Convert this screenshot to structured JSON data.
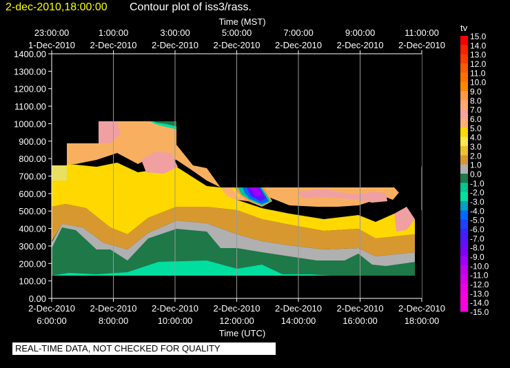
{
  "header": {
    "timestamp": "2-dec-2010,18:00:00",
    "title": "Contour plot of iss3/rass."
  },
  "banner": "REAL-TIME DATA, NOT CHECKED FOR QUALITY",
  "colors": {
    "background": "#000000",
    "grid": "#999999",
    "text": "#ffffff"
  },
  "chart_data": {
    "type": "heatmap",
    "ylim": [
      0,
      1400
    ],
    "yticks": [
      "1400.00",
      "1300.00",
      "1200.00",
      "1100.00",
      "1000.00",
      "900.00",
      "800.00",
      "700.00",
      "600.00",
      "500.00",
      "400.00",
      "300.00",
      "200.00",
      "100.00",
      "0.00"
    ],
    "top_axis": {
      "label": "Time (MST)",
      "ticks": [
        {
          "time": "23:00:00",
          "date": "1-Dec-2010"
        },
        {
          "time": "1:00:00",
          "date": "2-Dec-2010"
        },
        {
          "time": "3:00:00",
          "date": "2-Dec-2010"
        },
        {
          "time": "5:00:00",
          "date": "2-Dec-2010"
        },
        {
          "time": "7:00:00",
          "date": "2-Dec-2010"
        },
        {
          "time": "9:00:00",
          "date": "2-Dec-2010"
        },
        {
          "time": "11:00:00",
          "date": "2-Dec-2010"
        }
      ]
    },
    "bottom_axis": {
      "label": "Time (UTC)",
      "ticks": [
        {
          "date": "2-Dec-2010",
          "time": "6:00:00"
        },
        {
          "date": "2-Dec-2010",
          "time": "8:00:00"
        },
        {
          "date": "2-Dec-2010",
          "time": "10:00:00"
        },
        {
          "date": "2-Dec-2010",
          "time": "12:00:00"
        },
        {
          "date": "2-Dec-2010",
          "time": "14:00:00"
        },
        {
          "date": "2-Dec-2010",
          "time": "16:00:00"
        },
        {
          "date": "2-Dec-2010",
          "time": "18:00:00"
        }
      ]
    },
    "xlim_utc_hours": [
      6,
      18
    ],
    "colorbar": {
      "label": "tv",
      "levels": [
        "15.0",
        "14.0",
        "13.0",
        "12.0",
        "11.0",
        "10.0",
        "9.0",
        "8.0",
        "7.0",
        "6.0",
        "5.0",
        "4.0",
        "3.0",
        "2.0",
        "1.0",
        "0.0",
        "-1.0",
        "-2.0",
        "-3.0",
        "-4.0",
        "-5.0",
        "-6.0",
        "-7.0",
        "-8.0",
        "-9.0",
        "-10.0",
        "-11.0",
        "-12.0",
        "-13.0",
        "-14.0",
        "-15.0"
      ],
      "colors": [
        "#ff0000",
        "#ff2000",
        "#ff3c00",
        "#ff5a00",
        "#ff7000",
        "#ff8800",
        "#ff9a48",
        "#ffa870",
        "#ffa0a0",
        "#ffb070",
        "#ffd800",
        "#ffe84a",
        "#f0c030",
        "#d89830",
        "#b0b0b0",
        "#1e7848",
        "#00c890",
        "#00e0a0",
        "#00a0c0",
        "#0068ff",
        "#2040ff",
        "#4020ff",
        "#6010ff",
        "#8000ff",
        "#a000ff",
        "#c000f0",
        "#d800e8",
        "#ee00e0",
        "#ff00dc",
        "#ff00e0"
      ]
    }
  }
}
